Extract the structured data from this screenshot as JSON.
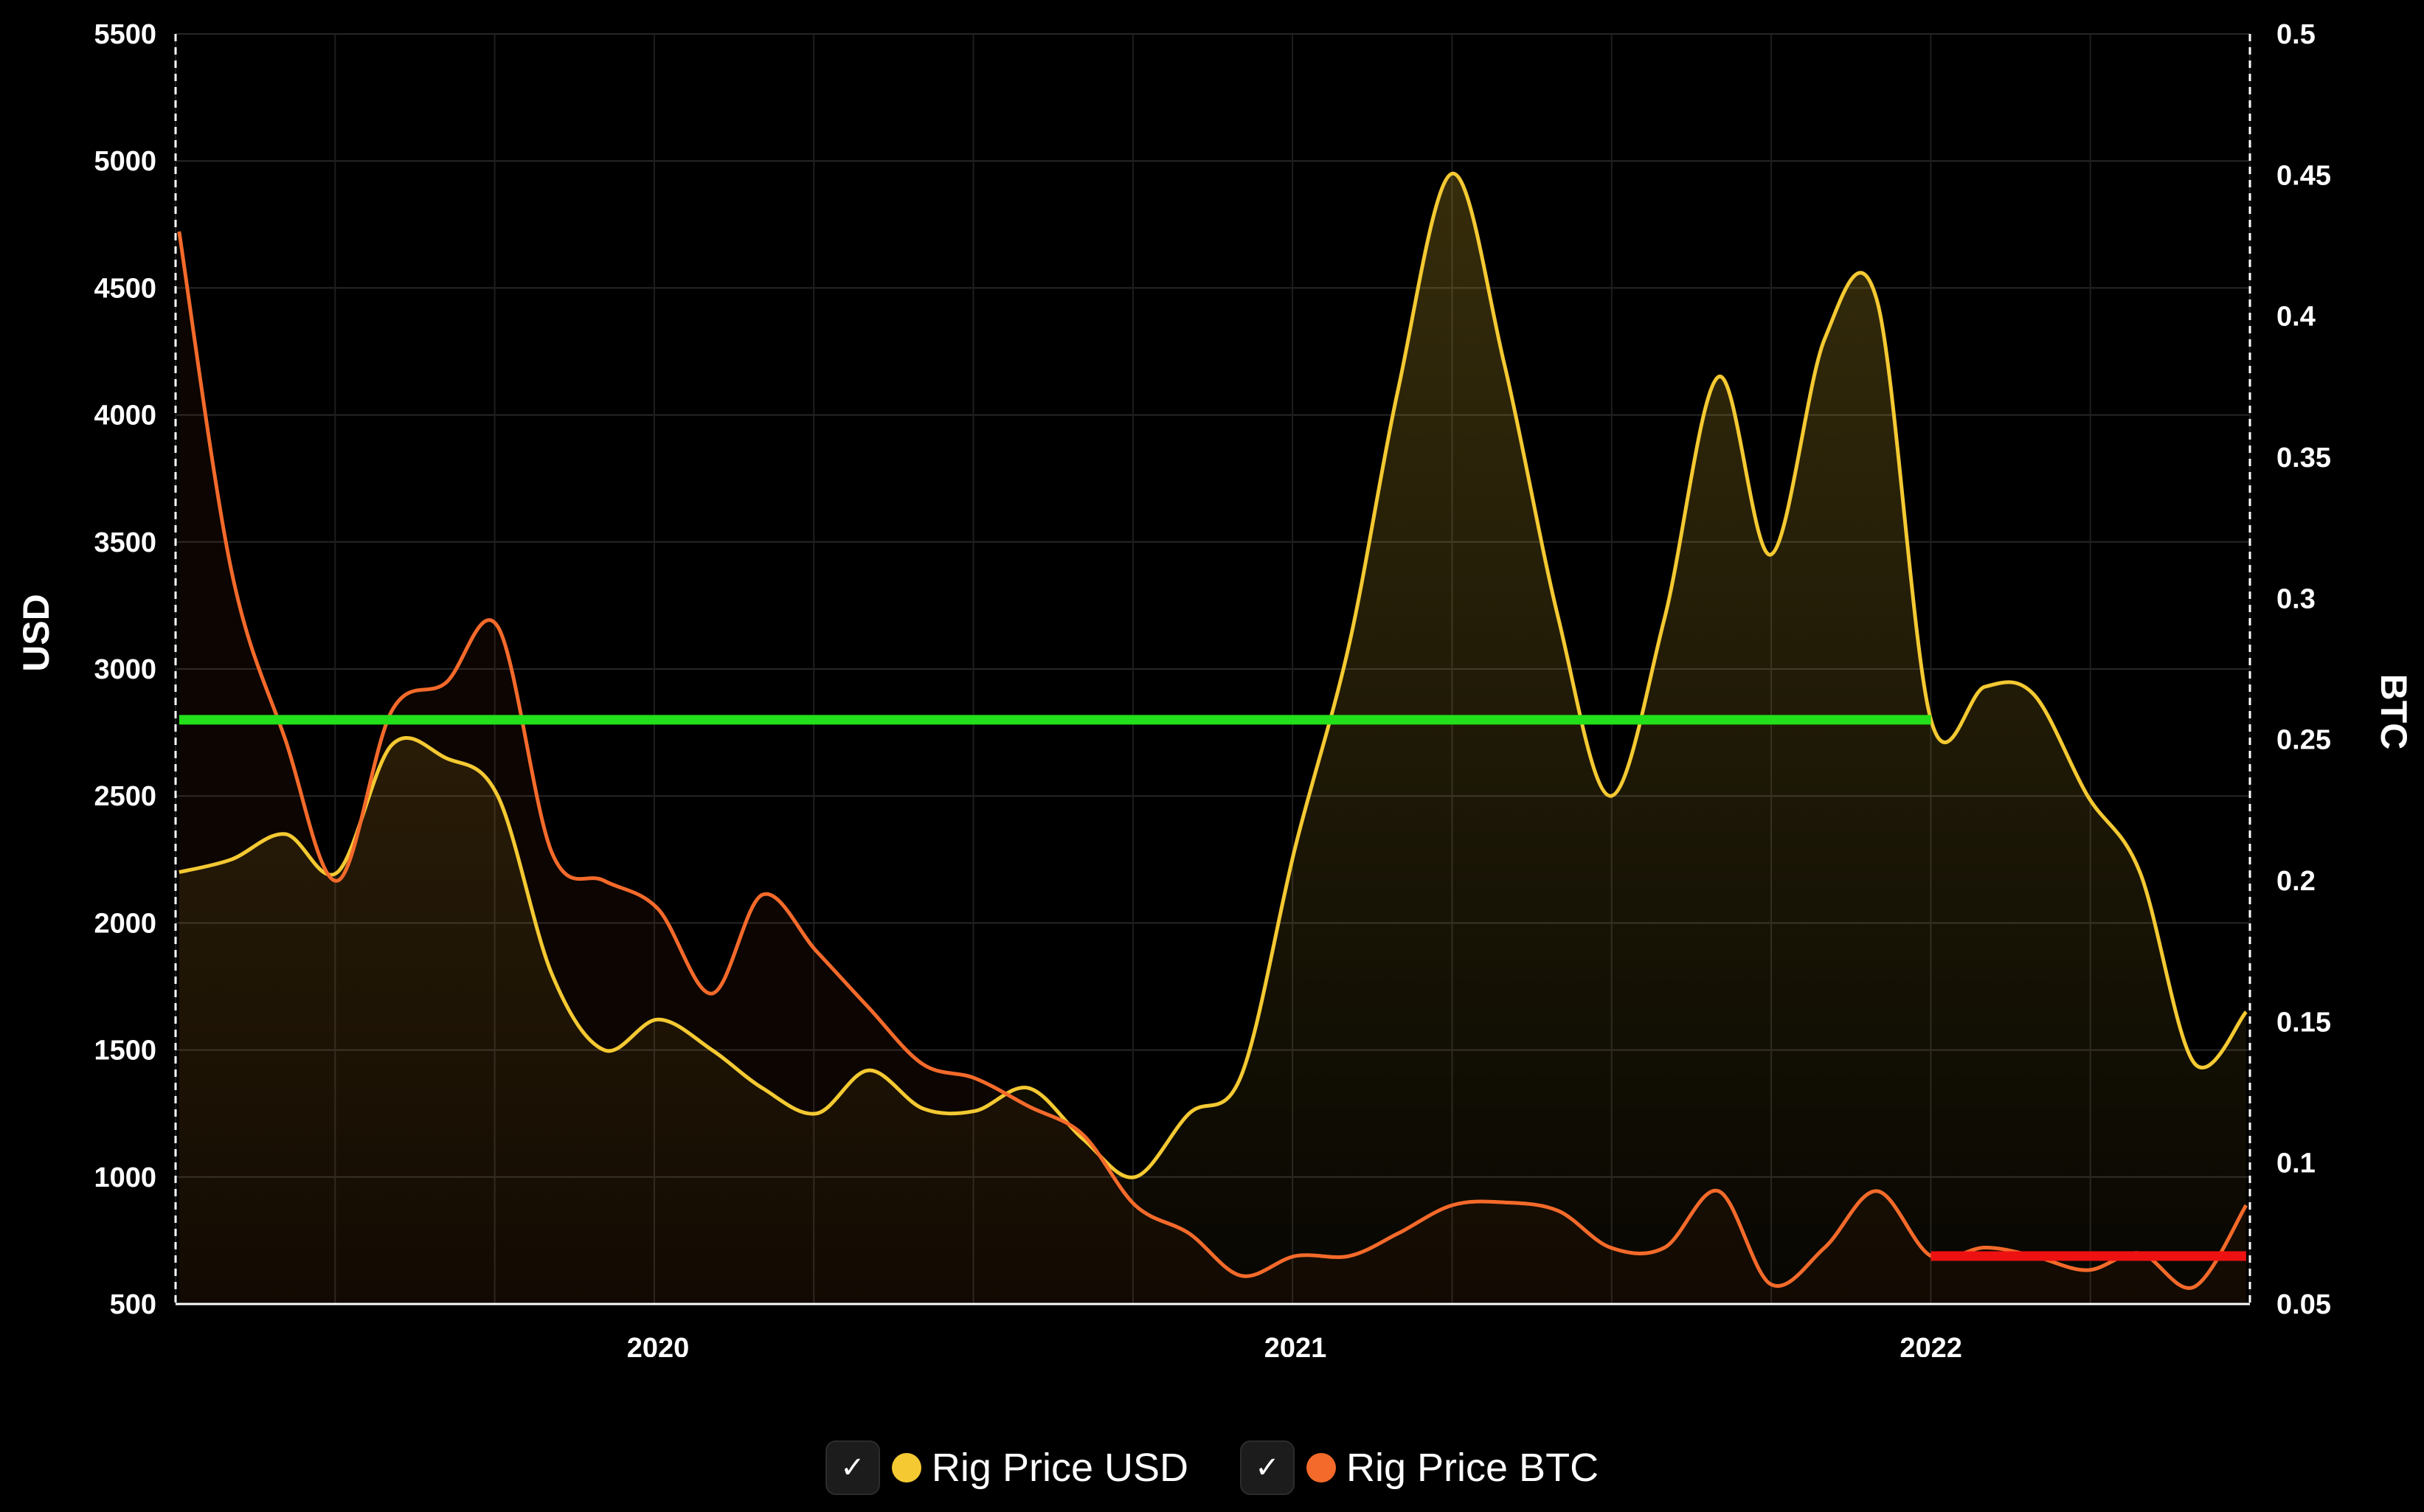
{
  "chart_data": {
    "type": "line",
    "x_ticks": [
      "2020",
      "2021",
      "2022"
    ],
    "y_left": {
      "label": "USD",
      "min": 500,
      "max": 5500,
      "ticks": [
        500,
        1000,
        1500,
        2000,
        2500,
        3000,
        3500,
        4000,
        4500,
        5000,
        5500
      ]
    },
    "y_right": {
      "label": "BTC",
      "min": 0.05,
      "max": 0.5,
      "ticks": [
        "0.05",
        "0.1",
        "0.15",
        "0.2",
        "0.25",
        "0.3",
        "0.35",
        "0.4",
        "0.45",
        "0.5"
      ]
    },
    "grid": true,
    "legend_position": "bottom",
    "series": [
      {
        "name": "Rig Price USD",
        "axis": "left",
        "color": "#f4c932",
        "area": true,
        "points": [
          [
            "2019-04-01",
            2200
          ],
          [
            "2019-05-01",
            2250
          ],
          [
            "2019-06-01",
            2350
          ],
          [
            "2019-07-01",
            2200
          ],
          [
            "2019-08-01",
            2700
          ],
          [
            "2019-09-01",
            2650
          ],
          [
            "2019-10-01",
            2500
          ],
          [
            "2019-11-01",
            1800
          ],
          [
            "2019-12-01",
            1500
          ],
          [
            "2020-01-01",
            1620
          ],
          [
            "2020-02-01",
            1500
          ],
          [
            "2020-03-01",
            1350
          ],
          [
            "2020-04-01",
            1250
          ],
          [
            "2020-05-01",
            1420
          ],
          [
            "2020-06-01",
            1270
          ],
          [
            "2020-07-01",
            1260
          ],
          [
            "2020-08-01",
            1350
          ],
          [
            "2020-09-01",
            1150
          ],
          [
            "2020-10-01",
            1000
          ],
          [
            "2020-11-01",
            1250
          ],
          [
            "2020-12-01",
            1400
          ],
          [
            "2021-01-01",
            2300
          ],
          [
            "2021-02-01",
            3100
          ],
          [
            "2021-03-01",
            4100
          ],
          [
            "2021-04-01",
            4950
          ],
          [
            "2021-05-01",
            4200
          ],
          [
            "2021-06-01",
            3200
          ],
          [
            "2021-07-01",
            2500
          ],
          [
            "2021-08-01",
            3200
          ],
          [
            "2021-09-01",
            4150
          ],
          [
            "2021-10-01",
            3450
          ],
          [
            "2021-11-01",
            4300
          ],
          [
            "2021-12-01",
            4450
          ],
          [
            "2022-01-01",
            2800
          ],
          [
            "2022-02-01",
            2930
          ],
          [
            "2022-03-01",
            2900
          ],
          [
            "2022-04-01",
            2500
          ],
          [
            "2022-05-01",
            2200
          ],
          [
            "2022-06-01",
            1450
          ],
          [
            "2022-07-01",
            1650
          ]
        ]
      },
      {
        "name": "Rig Price BTC",
        "axis": "right",
        "color": "#f46a2a",
        "area": true,
        "points": [
          [
            "2019-04-01",
            0.43
          ],
          [
            "2019-05-01",
            0.31
          ],
          [
            "2019-06-01",
            0.25
          ],
          [
            "2019-07-01",
            0.2
          ],
          [
            "2019-08-01",
            0.26
          ],
          [
            "2019-09-01",
            0.27
          ],
          [
            "2019-10-01",
            0.29
          ],
          [
            "2019-11-01",
            0.21
          ],
          [
            "2019-12-01",
            0.2
          ],
          [
            "2020-01-01",
            0.19
          ],
          [
            "2020-02-01",
            0.16
          ],
          [
            "2020-03-01",
            0.195
          ],
          [
            "2020-04-01",
            0.175
          ],
          [
            "2020-05-01",
            0.155
          ],
          [
            "2020-06-01",
            0.135
          ],
          [
            "2020-07-01",
            0.13
          ],
          [
            "2020-08-01",
            0.12
          ],
          [
            "2020-09-01",
            0.11
          ],
          [
            "2020-10-01",
            0.085
          ],
          [
            "2020-11-01",
            0.075
          ],
          [
            "2020-12-01",
            0.06
          ],
          [
            "2021-01-01",
            0.067
          ],
          [
            "2021-02-01",
            0.067
          ],
          [
            "2021-03-01",
            0.075
          ],
          [
            "2021-04-01",
            0.085
          ],
          [
            "2021-05-01",
            0.086
          ],
          [
            "2021-06-01",
            0.083
          ],
          [
            "2021-07-01",
            0.07
          ],
          [
            "2021-08-01",
            0.07
          ],
          [
            "2021-09-01",
            0.09
          ],
          [
            "2021-10-01",
            0.057
          ],
          [
            "2021-11-01",
            0.07
          ],
          [
            "2021-12-01",
            0.09
          ],
          [
            "2022-01-01",
            0.067
          ],
          [
            "2022-02-01",
            0.07
          ],
          [
            "2022-03-01",
            0.067
          ],
          [
            "2022-04-01",
            0.062
          ],
          [
            "2022-05-01",
            0.068
          ],
          [
            "2022-06-01",
            0.056
          ],
          [
            "2022-07-01",
            0.085
          ]
        ]
      }
    ],
    "reference_lines": [
      {
        "axis": "left",
        "value": 2800,
        "from": "2019-04-01",
        "to": "2022-01-01",
        "color": "#22e01a"
      },
      {
        "axis": "right",
        "value": 0.067,
        "from": "2022-01-01",
        "to": "2022-07-01",
        "color": "#ee1111"
      }
    ]
  },
  "legend": {
    "items": [
      {
        "label": "Rig Price USD",
        "check": "✓",
        "color": "#f4c932",
        "icon": "checkbox-checked-icon"
      },
      {
        "label": "Rig Price BTC",
        "check": "✓",
        "color": "#f46a2a",
        "icon": "checkbox-checked-icon"
      }
    ]
  }
}
